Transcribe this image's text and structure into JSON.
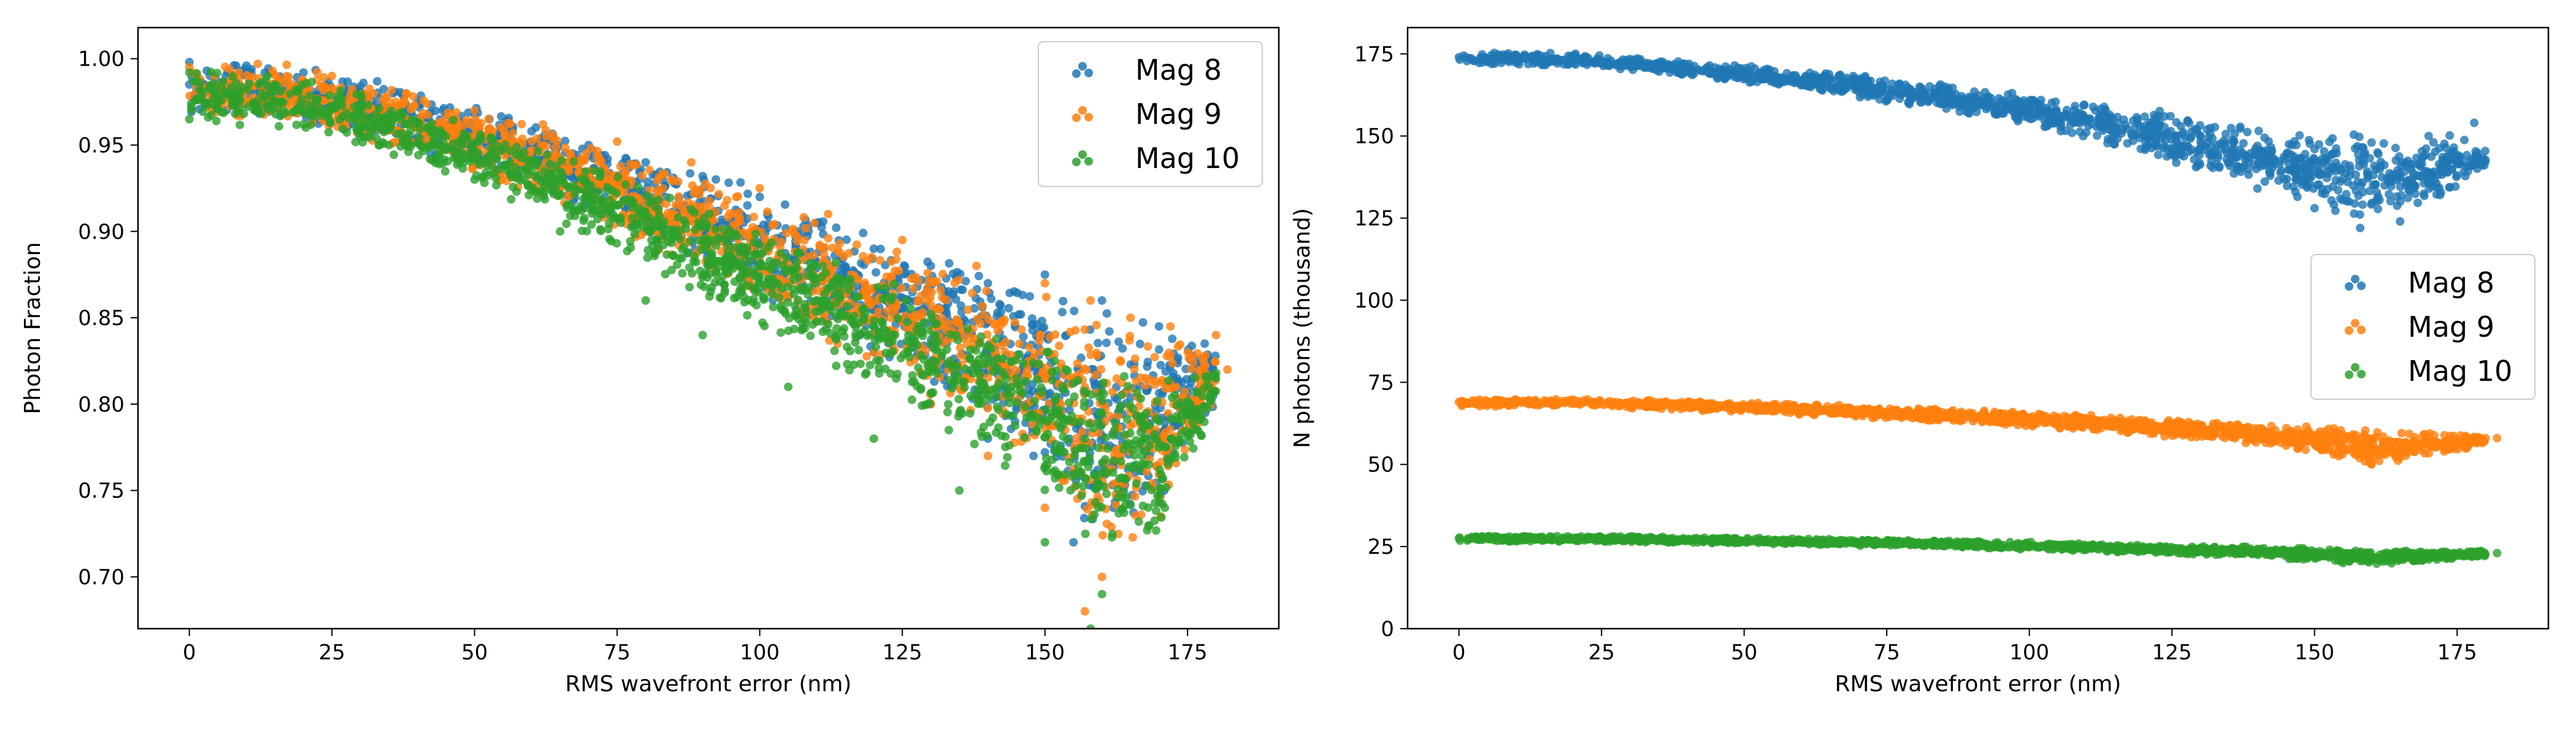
{
  "chart_data": [
    {
      "type": "scatter",
      "title": "",
      "xlabel": "RMS wavefront error (nm)",
      "ylabel": "Photon Fraction",
      "xlim": [
        -9,
        191
      ],
      "ylim": [
        0.67,
        1.018
      ],
      "xticks": [
        0,
        25,
        50,
        75,
        100,
        125,
        150,
        175
      ],
      "yticks": [
        0.7,
        0.75,
        0.8,
        0.85,
        0.9,
        0.95,
        1.0
      ],
      "ytick_decimals": 2,
      "grid": false,
      "legend": {
        "placement": "top-right"
      },
      "series": [
        {
          "name": "Mag 8",
          "color": "#1f77b4",
          "points": [
            [
              0,
              0.998
            ],
            [
              10,
              0.996
            ],
            [
              20,
              0.992
            ],
            [
              30,
              0.984
            ],
            [
              40,
              0.976
            ],
            [
              50,
              0.968
            ],
            [
              60,
              0.958
            ],
            [
              70,
              0.95
            ],
            [
              80,
              0.94
            ],
            [
              90,
              0.932
            ],
            [
              100,
              0.92
            ],
            [
              110,
              0.905
            ],
            [
              120,
              0.89
            ],
            [
              130,
              0.88
            ],
            [
              140,
              0.87
            ],
            [
              150,
              0.875
            ],
            [
              160,
              0.86
            ],
            [
              170,
              0.845
            ],
            [
              178,
              0.835
            ],
            [
              155,
              0.72
            ],
            [
              162,
              0.74
            ],
            [
              168,
              0.77
            ],
            [
              175,
              0.8
            ],
            [
              140,
              0.78
            ],
            [
              130,
              0.8
            ],
            [
              120,
              0.83
            ],
            [
              110,
              0.86
            ],
            [
              100,
              0.88
            ],
            [
              90,
              0.9
            ],
            [
              80,
              0.92
            ],
            [
              60,
              0.94
            ],
            [
              40,
              0.96
            ],
            [
              20,
              0.975
            ],
            [
              0,
              0.985
            ]
          ],
          "band": {
            "x": [
              0,
              10,
              20,
              30,
              40,
              50,
              60,
              70,
              80,
              90,
              100,
              110,
              120,
              130,
              140,
              150,
              155,
              160,
              165,
              170,
              175,
              180
            ],
            "lower": [
              0.968,
              0.966,
              0.962,
              0.955,
              0.946,
              0.936,
              0.924,
              0.91,
              0.895,
              0.88,
              0.862,
              0.845,
              0.828,
              0.81,
              0.79,
              0.76,
              0.735,
              0.722,
              0.722,
              0.735,
              0.77,
              0.8
            ],
            "upper": [
              1.0,
              1.0,
              0.998,
              0.99,
              0.982,
              0.974,
              0.964,
              0.955,
              0.945,
              0.937,
              0.926,
              0.912,
              0.9,
              0.888,
              0.878,
              0.872,
              0.862,
              0.862,
              0.855,
              0.848,
              0.842,
              0.832
            ]
          }
        },
        {
          "name": "Mag 9",
          "color": "#ff7f0e",
          "points": [
            [
              0,
              0.995
            ],
            [
              12,
              0.997
            ],
            [
              25,
              0.99
            ],
            [
              38,
              0.98
            ],
            [
              50,
              0.97
            ],
            [
              62,
              0.962
            ],
            [
              75,
              0.952
            ],
            [
              88,
              0.94
            ],
            [
              100,
              0.925
            ],
            [
              112,
              0.91
            ],
            [
              125,
              0.895
            ],
            [
              138,
              0.88
            ],
            [
              150,
              0.87
            ],
            [
              158,
              0.86
            ],
            [
              165,
              0.85
            ],
            [
              172,
              0.845
            ],
            [
              180,
              0.84
            ],
            [
              182,
              0.82
            ],
            [
              157,
              0.68
            ],
            [
              160,
              0.7
            ],
            [
              150,
              0.74
            ],
            [
              140,
              0.77
            ],
            [
              130,
              0.8
            ],
            [
              120,
              0.83
            ],
            [
              105,
              0.87
            ],
            [
              95,
              0.89
            ],
            [
              85,
              0.91
            ],
            [
              70,
              0.93
            ],
            [
              50,
              0.95
            ],
            [
              30,
              0.965
            ],
            [
              10,
              0.975
            ]
          ],
          "band": {
            "x": [
              0,
              10,
              20,
              30,
              40,
              50,
              60,
              70,
              80,
              90,
              100,
              110,
              120,
              130,
              140,
              150,
              155,
              160,
              165,
              170,
              175,
              180
            ],
            "lower": [
              0.965,
              0.963,
              0.959,
              0.952,
              0.943,
              0.932,
              0.92,
              0.906,
              0.89,
              0.874,
              0.857,
              0.84,
              0.822,
              0.804,
              0.782,
              0.752,
              0.73,
              0.715,
              0.716,
              0.73,
              0.765,
              0.8
            ],
            "upper": [
              0.999,
              0.999,
              0.996,
              0.988,
              0.98,
              0.972,
              0.962,
              0.952,
              0.942,
              0.933,
              0.922,
              0.908,
              0.895,
              0.884,
              0.872,
              0.865,
              0.858,
              0.856,
              0.85,
              0.845,
              0.84,
              0.83
            ]
          }
        },
        {
          "name": "Mag 10",
          "color": "#2ca02c",
          "points": [
            [
              0,
              0.992
            ],
            [
              0,
              0.965
            ],
            [
              15,
              0.985
            ],
            [
              30,
              0.97
            ],
            [
              45,
              0.955
            ],
            [
              60,
              0.935
            ],
            [
              75,
              0.915
            ],
            [
              90,
              0.895
            ],
            [
              100,
              0.87
            ],
            [
              110,
              0.86
            ],
            [
              120,
              0.845
            ],
            [
              130,
              0.835
            ],
            [
              145,
              0.815
            ],
            [
              160,
              0.795
            ],
            [
              170,
              0.79
            ],
            [
              180,
              0.818
            ],
            [
              158,
              0.67
            ],
            [
              160,
              0.69
            ],
            [
              150,
              0.72
            ],
            [
              135,
              0.75
            ],
            [
              120,
              0.78
            ],
            [
              105,
              0.81
            ],
            [
              90,
              0.84
            ],
            [
              80,
              0.86
            ],
            [
              65,
              0.9
            ],
            [
              50,
              0.93
            ],
            [
              35,
              0.95
            ],
            [
              20,
              0.962
            ]
          ],
          "band": {
            "x": [
              0,
              10,
              20,
              30,
              40,
              50,
              60,
              70,
              80,
              90,
              100,
              110,
              120,
              130,
              140,
              150,
              155,
              160,
              165,
              170,
              175,
              180
            ],
            "lower": [
              0.962,
              0.96,
              0.955,
              0.947,
              0.937,
              0.925,
              0.912,
              0.897,
              0.88,
              0.862,
              0.844,
              0.826,
              0.808,
              0.79,
              0.768,
              0.74,
              0.72,
              0.705,
              0.708,
              0.722,
              0.76,
              0.8
            ],
            "upper": [
              0.995,
              0.994,
              0.99,
              0.982,
              0.973,
              0.963,
              0.951,
              0.94,
              0.928,
              0.916,
              0.903,
              0.89,
              0.876,
              0.862,
              0.85,
              0.84,
              0.834,
              0.83,
              0.826,
              0.822,
              0.82,
              0.818
            ]
          }
        }
      ]
    },
    {
      "type": "scatter",
      "title": "",
      "xlabel": "RMS wavefront error (nm)",
      "ylabel": "N photons (thousand)",
      "xlim": [
        -9,
        191
      ],
      "ylim": [
        0,
        183
      ],
      "xticks": [
        0,
        25,
        50,
        75,
        100,
        125,
        150,
        175
      ],
      "yticks": [
        0,
        25,
        50,
        75,
        100,
        125,
        150,
        175
      ],
      "ytick_decimals": 0,
      "grid": false,
      "legend": {
        "placement": "center-right"
      },
      "series": [
        {
          "name": "Mag 8",
          "color": "#1f77b4",
          "points": [
            [
              0,
              174
            ],
            [
              10,
              174.5
            ],
            [
              20,
              173.5
            ],
            [
              30,
              172
            ],
            [
              40,
              170.5
            ],
            [
              50,
              169
            ],
            [
              60,
              167
            ],
            [
              70,
              165
            ],
            [
              80,
              163
            ],
            [
              90,
              160
            ],
            [
              100,
              158
            ],
            [
              110,
              155
            ],
            [
              120,
              152
            ],
            [
              130,
              150
            ],
            [
              140,
              147
            ],
            [
              150,
              146
            ],
            [
              160,
              148
            ],
            [
              170,
              150
            ],
            [
              178,
              154
            ],
            [
              158,
              122
            ],
            [
              165,
              124
            ],
            [
              172,
              132
            ],
            [
              150,
              128
            ],
            [
              140,
              134
            ]
          ],
          "band": {
            "x": [
              0,
              20,
              40,
              60,
              80,
              100,
              120,
              130,
              140,
              150,
              155,
              160,
              165,
              170,
              175,
              180
            ],
            "lower": [
              172,
              171,
              168,
              164,
              159,
              153,
              144,
              139,
              134,
              128,
              125,
              124,
              125,
              128,
              134,
              140
            ],
            "upper": [
              175.5,
              175.5,
              173,
              170,
              167,
              163,
              159,
              156,
              153,
              151,
              151,
              150,
              150,
              151,
              150,
              146
            ]
          }
        },
        {
          "name": "Mag 9",
          "color": "#ff7f0e",
          "points": [
            [
              0,
              69
            ],
            [
              15,
              69.5
            ],
            [
              30,
              69
            ],
            [
              45,
              68
            ],
            [
              60,
              67
            ],
            [
              75,
              66
            ],
            [
              90,
              65
            ],
            [
              105,
              63
            ],
            [
              120,
              61
            ],
            [
              135,
              60
            ],
            [
              150,
              58
            ],
            [
              160,
              50
            ],
            [
              165,
              52
            ],
            [
              170,
              56
            ],
            [
              180,
              58
            ],
            [
              182,
              58
            ]
          ],
          "band": {
            "x": [
              0,
              20,
              40,
              60,
              80,
              100,
              120,
              140,
              150,
              155,
              160,
              165,
              170,
              175,
              180
            ],
            "lower": [
              67.5,
              67.5,
              66.5,
              65,
              63.5,
              61.5,
              59,
              56,
              53.5,
              51,
              49,
              50,
              52,
              54,
              56
            ],
            "upper": [
              70,
              70,
              69.5,
              68.5,
              67.5,
              66,
              64.5,
              62.5,
              62,
              61.5,
              61,
              60.5,
              60,
              59.5,
              59
            ]
          }
        },
        {
          "name": "Mag 10",
          "color": "#2ca02c",
          "points": [
            [
              0,
              27.5
            ],
            [
              20,
              27.5
            ],
            [
              40,
              27
            ],
            [
              60,
              26.5
            ],
            [
              80,
              25.5
            ],
            [
              100,
              25
            ],
            [
              120,
              24
            ],
            [
              140,
              23
            ],
            [
              155,
              20
            ],
            [
              160,
              21
            ],
            [
              170,
              22
            ],
            [
              182,
              23
            ]
          ],
          "band": {
            "x": [
              0,
              20,
              40,
              60,
              80,
              100,
              120,
              140,
              150,
              160,
              170,
              180
            ],
            "lower": [
              26.5,
              26.5,
              26,
              25.5,
              25,
              24,
              23,
              22,
              20.5,
              19.5,
              20.5,
              22
            ],
            "upper": [
              28.3,
              28.3,
              28,
              27.5,
              27,
              26.5,
              25.5,
              25,
              24.5,
              24,
              24,
              24
            ]
          }
        }
      ]
    }
  ]
}
